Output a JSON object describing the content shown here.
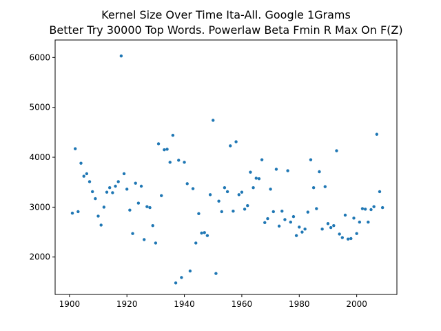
{
  "chart_data": {
    "type": "scatter",
    "title_line1": "Kernel Size Over Time Ita-All. Google 1Grams",
    "title_line2": "Better Try 30000 Top Words. Powerlaw Beta Fmin R Max On F(Z)",
    "xlabel": "",
    "ylabel": "",
    "xlim": [
      1895,
      2014
    ],
    "ylim": [
      1250,
      6350
    ],
    "x_ticks": [
      1900,
      1920,
      1940,
      1960,
      1980,
      2000
    ],
    "y_ticks": [
      2000,
      3000,
      4000,
      5000,
      6000
    ],
    "grid": false,
    "marker_color": "#1f77b4",
    "series": [
      {
        "x": [
          1901,
          1902,
          1903,
          1904,
          1905,
          1906,
          1907,
          1908,
          1909,
          1910,
          1911,
          1912,
          1913,
          1914,
          1915,
          1916,
          1917,
          1918,
          1919,
          1920,
          1921,
          1922,
          1923,
          1924,
          1925,
          1926,
          1927,
          1928,
          1929,
          1930,
          1931,
          1932,
          1933,
          1934,
          1935,
          1936,
          1937,
          1938,
          1939,
          1940,
          1941,
          1942,
          1943,
          1944,
          1945,
          1946,
          1947,
          1948,
          1949,
          1950,
          1951,
          1952,
          1953,
          1954,
          1955,
          1956,
          1957,
          1958,
          1959,
          1960,
          1961,
          1962,
          1963,
          1964,
          1965,
          1966,
          1967,
          1968,
          1969,
          1970,
          1971,
          1972,
          1973,
          1974,
          1975,
          1976,
          1977,
          1978,
          1979,
          1980,
          1981,
          1982,
          1983,
          1984,
          1985,
          1986,
          1987,
          1988,
          1989,
          1990,
          1991,
          1992,
          1993,
          1994,
          1995,
          1996,
          1997,
          1998,
          1999,
          2000,
          2001,
          2002,
          2003,
          2004,
          2005,
          2006,
          2007,
          2008,
          2009
        ],
        "y": [
          2880,
          4170,
          2910,
          3880,
          3620,
          3670,
          3510,
          3310,
          3170,
          2820,
          2640,
          3000,
          3300,
          3390,
          3290,
          3420,
          3510,
          6030,
          3670,
          3360,
          2940,
          2470,
          3480,
          3080,
          3420,
          2350,
          3010,
          2990,
          2630,
          2280,
          4270,
          3230,
          4150,
          4160,
          3900,
          4440,
          1480,
          3940,
          1590,
          3900,
          3470,
          1720,
          3370,
          2280,
          2870,
          2480,
          2490,
          2430,
          3250,
          4740,
          1670,
          3120,
          2910,
          3390,
          3310,
          4230,
          2920,
          4310,
          3250,
          3300,
          2960,
          3030,
          3700,
          3390,
          3580,
          3570,
          3950,
          2690,
          2770,
          3360,
          2910,
          3760,
          2620,
          2920,
          2750,
          3730,
          2700,
          2810,
          2430,
          2600,
          2500,
          2560,
          2900,
          3950,
          3390,
          2970,
          3710,
          2560,
          3410,
          2670,
          2590,
          2630,
          4130,
          2460,
          2390,
          2840,
          2360,
          2370,
          2780,
          2470,
          2700,
          2970,
          2960,
          2700,
          2950,
          3010,
          4460,
          3310,
          2990
        ]
      }
    ]
  }
}
